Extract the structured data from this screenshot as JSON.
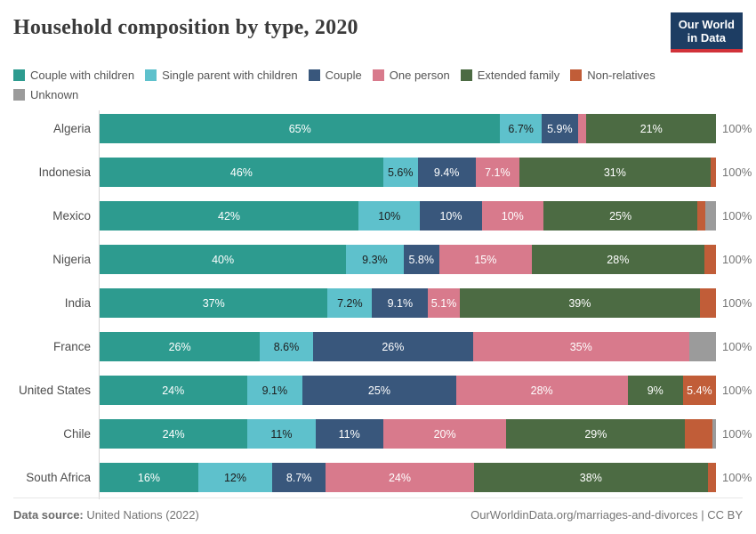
{
  "header": {
    "title": "Household composition by type, 2020",
    "logo": {
      "line1": "Our World",
      "line2": "in Data",
      "bg_color": "#1d3d63",
      "accent_color": "#d13239"
    }
  },
  "footer": {
    "source_label": "Data source:",
    "source_value": " United Nations (2022)",
    "link": "OurWorldinData.org/marriages-and-divorces | CC BY"
  },
  "chart_data": {
    "type": "bar",
    "variant": "horizontal-stacked",
    "title": "Household composition by type, 2020",
    "unit": "%",
    "xlim": [
      0,
      100
    ],
    "legend_position": "top",
    "grid": false,
    "series": [
      {
        "name": "Couple with children",
        "color": "#2d9b8f",
        "label_color": "#ffffff"
      },
      {
        "name": "Single parent with children",
        "color": "#5ec1cc",
        "label_color": "#1d1d1d"
      },
      {
        "name": "Couple",
        "color": "#39577c",
        "label_color": "#ffffff"
      },
      {
        "name": "One person",
        "color": "#d87a8c",
        "label_color": "#ffffff"
      },
      {
        "name": "Extended family",
        "color": "#4c6b43",
        "label_color": "#ffffff"
      },
      {
        "name": "Non-relatives",
        "color": "#c15d38",
        "label_color": "#ffffff"
      },
      {
        "name": "Unknown",
        "color": "#9b9b9b",
        "label_color": "#ffffff"
      }
    ],
    "rows": [
      {
        "country": "Algeria",
        "total_label": "100%",
        "segments": [
          {
            "series": 0,
            "value": 65,
            "label": "65%"
          },
          {
            "series": 1,
            "value": 6.7,
            "label": "6.7%"
          },
          {
            "series": 2,
            "value": 5.9,
            "label": "5.9%"
          },
          {
            "series": 3,
            "value": 1.4,
            "label": ""
          },
          {
            "series": 4,
            "value": 21,
            "label": "21%"
          }
        ]
      },
      {
        "country": "Indonesia",
        "total_label": "100%",
        "segments": [
          {
            "series": 0,
            "value": 46,
            "label": "46%"
          },
          {
            "series": 1,
            "value": 5.6,
            "label": "5.6%"
          },
          {
            "series": 2,
            "value": 9.4,
            "label": "9.4%"
          },
          {
            "series": 3,
            "value": 7.1,
            "label": "7.1%"
          },
          {
            "series": 4,
            "value": 31,
            "label": "31%"
          },
          {
            "series": 5,
            "value": 0.9,
            "label": ""
          }
        ]
      },
      {
        "country": "Mexico",
        "total_label": "100%",
        "segments": [
          {
            "series": 0,
            "value": 42,
            "label": "42%"
          },
          {
            "series": 1,
            "value": 10,
            "label": "10%"
          },
          {
            "series": 2,
            "value": 10,
            "label": "10%"
          },
          {
            "series": 3,
            "value": 10,
            "label": "10%"
          },
          {
            "series": 4,
            "value": 25,
            "label": "25%"
          },
          {
            "series": 5,
            "value": 1.3,
            "label": ""
          },
          {
            "series": 6,
            "value": 1.7,
            "label": ""
          }
        ]
      },
      {
        "country": "Nigeria",
        "total_label": "100%",
        "segments": [
          {
            "series": 0,
            "value": 40,
            "label": "40%"
          },
          {
            "series": 1,
            "value": 9.3,
            "label": "9.3%"
          },
          {
            "series": 2,
            "value": 5.8,
            "label": "5.8%"
          },
          {
            "series": 3,
            "value": 15,
            "label": "15%"
          },
          {
            "series": 4,
            "value": 28,
            "label": "28%"
          },
          {
            "series": 5,
            "value": 1.9,
            "label": ""
          }
        ]
      },
      {
        "country": "India",
        "total_label": "100%",
        "segments": [
          {
            "series": 0,
            "value": 37,
            "label": "37%"
          },
          {
            "series": 1,
            "value": 7.2,
            "label": "7.2%"
          },
          {
            "series": 2,
            "value": 9.1,
            "label": "9.1%"
          },
          {
            "series": 3,
            "value": 5.1,
            "label": "5.1%"
          },
          {
            "series": 4,
            "value": 39,
            "label": "39%"
          },
          {
            "series": 5,
            "value": 2.6,
            "label": ""
          }
        ]
      },
      {
        "country": "France",
        "total_label": "100%",
        "segments": [
          {
            "series": 0,
            "value": 26,
            "label": "26%"
          },
          {
            "series": 1,
            "value": 8.6,
            "label": "8.6%"
          },
          {
            "series": 2,
            "value": 26,
            "label": "26%"
          },
          {
            "series": 3,
            "value": 35,
            "label": "35%"
          },
          {
            "series": 6,
            "value": 4.4,
            "label": ""
          }
        ]
      },
      {
        "country": "United States",
        "total_label": "100%",
        "segments": [
          {
            "series": 0,
            "value": 24,
            "label": "24%"
          },
          {
            "series": 1,
            "value": 9.1,
            "label": "9.1%"
          },
          {
            "series": 2,
            "value": 25,
            "label": "25%"
          },
          {
            "series": 3,
            "value": 28,
            "label": "28%"
          },
          {
            "series": 4,
            "value": 9,
            "label": "9%"
          },
          {
            "series": 5,
            "value": 5.4,
            "label": "5.4%"
          }
        ]
      },
      {
        "country": "Chile",
        "total_label": "100%",
        "segments": [
          {
            "series": 0,
            "value": 24,
            "label": "24%"
          },
          {
            "series": 1,
            "value": 11,
            "label": "11%"
          },
          {
            "series": 2,
            "value": 11,
            "label": "11%"
          },
          {
            "series": 3,
            "value": 20,
            "label": "20%"
          },
          {
            "series": 4,
            "value": 29,
            "label": "29%"
          },
          {
            "series": 5,
            "value": 4.4,
            "label": ""
          },
          {
            "series": 6,
            "value": 0.6,
            "label": ""
          }
        ]
      },
      {
        "country": "South Africa",
        "total_label": "100%",
        "segments": [
          {
            "series": 0,
            "value": 16,
            "label": "16%"
          },
          {
            "series": 1,
            "value": 12,
            "label": "12%"
          },
          {
            "series": 2,
            "value": 8.7,
            "label": "8.7%"
          },
          {
            "series": 3,
            "value": 24,
            "label": "24%"
          },
          {
            "series": 4,
            "value": 38,
            "label": "38%"
          },
          {
            "series": 5,
            "value": 1.3,
            "label": ""
          }
        ]
      }
    ]
  }
}
